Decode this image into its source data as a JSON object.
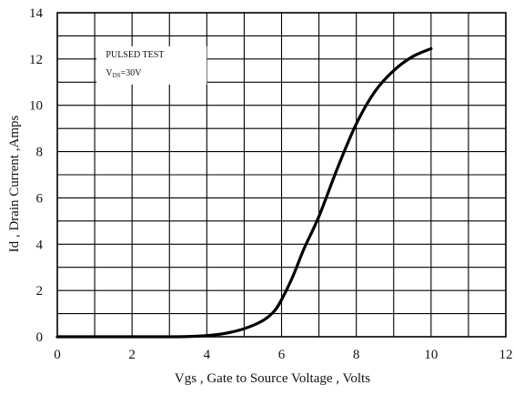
{
  "chart_data": {
    "type": "line",
    "title": "",
    "xlabel": "Vgs , Gate to Source Voltage ,    Volts",
    "ylabel": "Id , Drain Current ,Amps",
    "xlim": [
      0,
      12
    ],
    "ylim": [
      0,
      14
    ],
    "x_ticks": [
      "0",
      "2",
      "4",
      "6",
      "8",
      "10",
      "12"
    ],
    "y_ticks": [
      "0",
      "2",
      "4",
      "6",
      "8",
      "10",
      "12",
      "14"
    ],
    "grid": true,
    "grid_step_x": 1,
    "grid_step_y": 1,
    "annotation": {
      "line1": "PULSED   TEST",
      "line2_prefix": "V",
      "line2_sub": "DS",
      "line2_suffix": "=30V"
    },
    "series": [
      {
        "x": [
          0,
          1,
          2,
          3,
          3.5,
          4,
          4.5,
          5,
          5.5,
          5.8,
          6,
          6.3,
          6.6,
          7,
          7.5,
          8,
          8.5,
          9,
          9.5,
          10
        ],
        "y": [
          0,
          0,
          0,
          0,
          0.01,
          0.05,
          0.15,
          0.35,
          0.7,
          1.1,
          1.6,
          2.6,
          3.8,
          5.2,
          7.3,
          9.2,
          10.6,
          11.5,
          12.1,
          12.45
        ]
      }
    ]
  }
}
